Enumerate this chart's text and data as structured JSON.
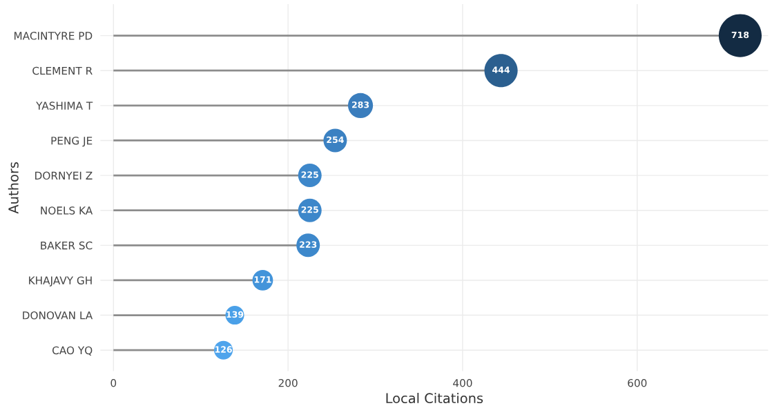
{
  "chart_data": {
    "type": "lollipop",
    "orientation": "horizontal",
    "xlabel": "Local Citations",
    "ylabel": "Authors",
    "categories": [
      "MACINTYRE PD",
      "CLEMENT R",
      "YASHIMA T",
      "PENG JE",
      "DORNYEI Z",
      "NOELS KA",
      "BAKER SC",
      "KHAJAVY GH",
      "DONOVAN LA",
      "CAO YQ"
    ],
    "values": [
      718,
      444,
      283,
      254,
      225,
      225,
      223,
      171,
      139,
      126
    ],
    "sizes": [
      1,
      0.6,
      0.34,
      0.3,
      0.3,
      0.3,
      0.3,
      0.23,
      0.19,
      0.19
    ],
    "colors": [
      "#132b43",
      "#2b5f8f",
      "#3a7dbd",
      "#3b81c2",
      "#3d87ca",
      "#3d87ca",
      "#3d88cb",
      "#4394da",
      "#4aa0e8",
      "#4fa4ec"
    ],
    "xlim": [
      -15,
      750
    ],
    "xticks": [
      0,
      200,
      400,
      600
    ],
    "grid": true,
    "data_labels": true
  }
}
